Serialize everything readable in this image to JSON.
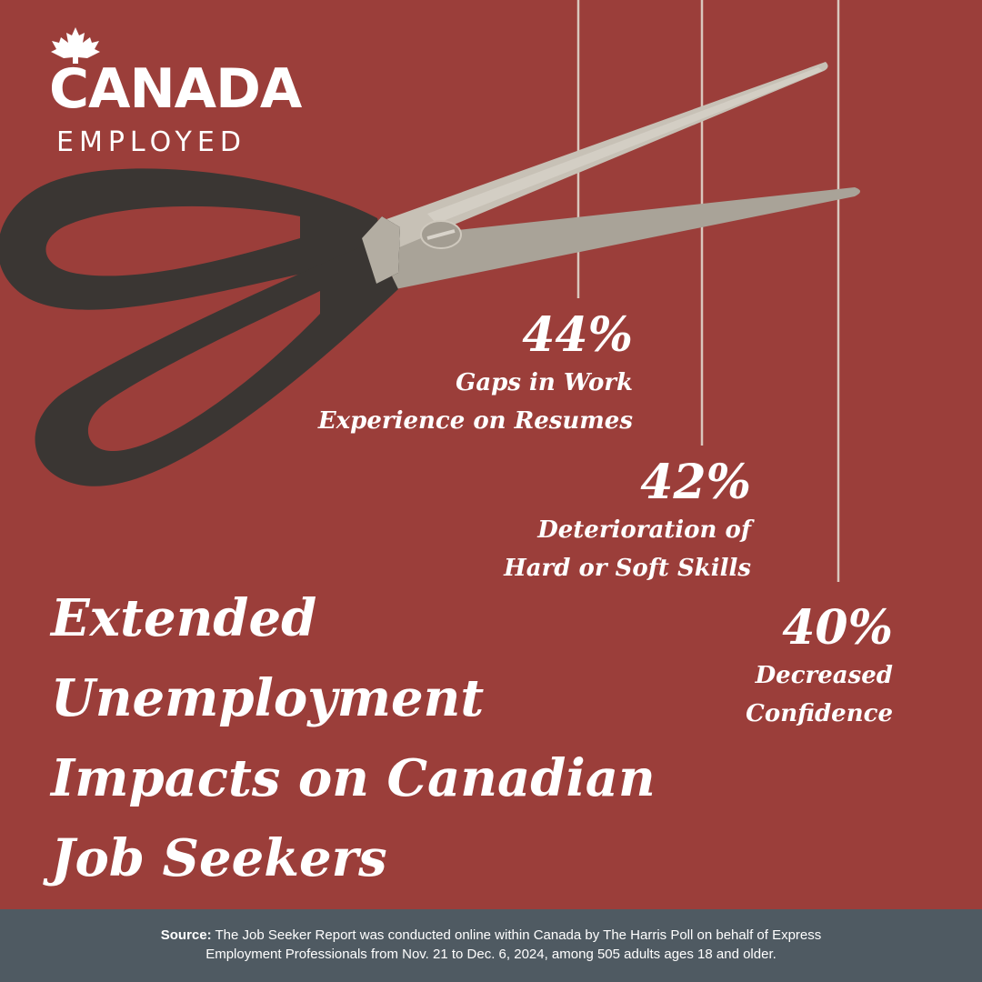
{
  "brand": {
    "name_line1": "CANADA",
    "name_line2": "EMPLOYED"
  },
  "stats": [
    {
      "percent": "44%",
      "label_line1": "Gaps in Work",
      "label_line2": "Experience on Resumes"
    },
    {
      "percent": "42%",
      "label_line1": "Deterioration of",
      "label_line2": "Hard or Soft Skills"
    },
    {
      "percent": "40%",
      "label_line1": "Decreased",
      "label_line2": "Confidence"
    }
  ],
  "headline": {
    "line1": "Extended",
    "line2": "Unemployment",
    "line3": "Impacts on Canadian",
    "line4": "Job Seekers"
  },
  "footer": {
    "source_label": "Source:",
    "source_line1": "The Job Seeker Report was conducted online within Canada by The Harris Poll on behalf of Express",
    "source_line2": "Employment Professionals from Nov. 21 to Dec. 6, 2024, among 505 adults ages 18 and older."
  },
  "colors": {
    "background": "#9b3e3a",
    "footer_background": "#4f5a62",
    "text": "#ffffff",
    "thread": "#d9c7bd",
    "scissor_handle": "#3a3633",
    "scissor_blade": "#b9b3a8"
  },
  "icons": {
    "logo_mark": "maple-leaf-icon",
    "illustration": "scissors-icon"
  }
}
